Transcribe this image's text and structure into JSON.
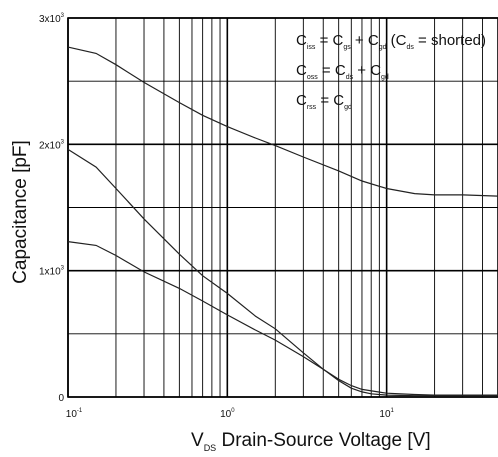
{
  "chart_data": {
    "type": "line",
    "xlabel": "V",
    "xlabel_sub": "DS",
    "xlabel_rest": " Drain-Source Voltage [V]",
    "ylabel": "Capacitance  [pF]",
    "x_scale": "log",
    "xlim": [
      0.1,
      50
    ],
    "ylim": [
      0,
      3000
    ],
    "x_ticks": [
      {
        "value": 0.1,
        "base": "10",
        "exp": "-1"
      },
      {
        "value": 1,
        "base": "10",
        "exp": "0"
      },
      {
        "value": 10,
        "base": "10",
        "exp": "1"
      }
    ],
    "y_ticks": [
      {
        "value": 0,
        "label": "0"
      },
      {
        "value": 1000,
        "base": "1x10",
        "exp": "3"
      },
      {
        "value": 2000,
        "base": "2x10",
        "exp": "3"
      },
      {
        "value": 3000,
        "base": "3x10",
        "exp": "3"
      }
    ],
    "grid": true,
    "series": [
      {
        "name": "Ciss",
        "x": [
          0.1,
          0.15,
          0.2,
          0.3,
          0.5,
          0.7,
          1,
          1.5,
          2,
          3,
          5,
          7,
          10,
          15,
          20,
          30,
          50
        ],
        "y": [
          2770,
          2720,
          2630,
          2490,
          2330,
          2230,
          2140,
          2050,
          1990,
          1900,
          1790,
          1710,
          1650,
          1610,
          1600,
          1600,
          1590
        ]
      },
      {
        "name": "Coss",
        "x": [
          0.1,
          0.15,
          0.2,
          0.3,
          0.5,
          0.7,
          1,
          1.5,
          2,
          3,
          4,
          5,
          6,
          7,
          8,
          10,
          15,
          20,
          30,
          50
        ],
        "y": [
          1960,
          1820,
          1650,
          1410,
          1130,
          960,
          820,
          640,
          540,
          350,
          220,
          130,
          70,
          40,
          25,
          15,
          10,
          10,
          10,
          10
        ]
      },
      {
        "name": "Crss",
        "x": [
          0.1,
          0.15,
          0.2,
          0.3,
          0.5,
          0.7,
          1,
          1.5,
          2,
          3,
          4,
          5,
          6,
          7,
          10,
          15,
          20,
          30,
          50
        ],
        "y": [
          1230,
          1200,
          1120,
          990,
          860,
          760,
          650,
          530,
          450,
          320,
          220,
          140,
          90,
          60,
          30,
          20,
          15,
          15,
          15
        ]
      }
    ],
    "annotations": [
      {
        "parts": [
          [
            "C",
            ""
          ],
          [
            "iss",
            "sub"
          ],
          [
            " = C",
            ""
          ],
          [
            "gs",
            "sub"
          ],
          [
            " + C",
            ""
          ],
          [
            "gd",
            "sub"
          ],
          [
            " (C",
            ""
          ],
          [
            "ds",
            "sub"
          ],
          [
            " = shorted)",
            ""
          ]
        ]
      },
      {
        "parts": [
          [
            "C",
            ""
          ],
          [
            "oss",
            "sub"
          ],
          [
            " = C",
            ""
          ],
          [
            "ds",
            "sub"
          ],
          [
            " + C",
            ""
          ],
          [
            "gd",
            "sub"
          ]
        ]
      },
      {
        "parts": [
          [
            "C",
            ""
          ],
          [
            "rss",
            "sub"
          ],
          [
            " = C",
            ""
          ],
          [
            "gd",
            "sub"
          ]
        ]
      }
    ]
  }
}
